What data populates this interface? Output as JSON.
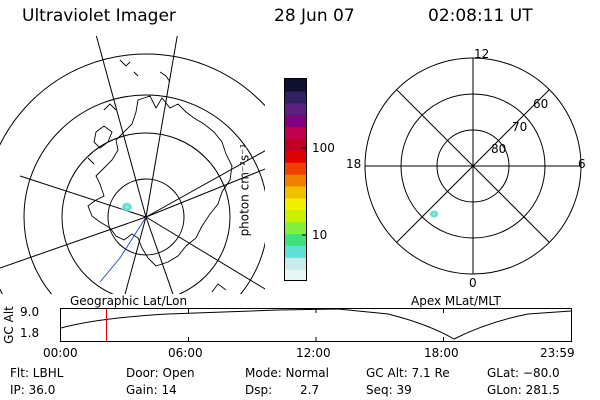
{
  "header": {
    "instrument": "Ultraviolet Imager",
    "date": "28 Jun 07",
    "time": "02:08:11 UT"
  },
  "maps": {
    "left_label": "Geographic Lat/Lon",
    "right_label": "Apex MLat/MLT"
  },
  "polar": {
    "mlt_labels": {
      "top": "12",
      "left": "18",
      "right": "6",
      "bottom": "0"
    },
    "mlat_labels": [
      "60",
      "70",
      "80"
    ]
  },
  "colorbar": {
    "unit_label": "photon cm⁻²s⁻¹",
    "tick_labels": [
      "100",
      "10"
    ],
    "colors": [
      "#e8f6f6",
      "#c8ecec",
      "#60e0d8",
      "#40e080",
      "#80f040",
      "#c8f000",
      "#f0f000",
      "#f0c000",
      "#f08000",
      "#f04000",
      "#e00000",
      "#c00020",
      "#c0004a",
      "#800080",
      "#5a2080",
      "#302060",
      "#101030"
    ]
  },
  "timeline": {
    "axis_label": "GC Alt",
    "ymax": "9.0",
    "ymin": "1.8",
    "ticks": [
      "00:00",
      "06:00",
      "12:00",
      "18:00",
      "23:59"
    ],
    "current_time_hours": 2.14
  },
  "info": {
    "flt": "Flt: LBHL",
    "ip": "IP: 36.0",
    "door": "Door: Open",
    "gain": "Gain: 14",
    "mode": "Mode: Normal",
    "dsp_label": "Dsp:",
    "dsp_value": "2.7",
    "gcalt": "GC Alt: 7.1 Re",
    "seq": "Seq: 39",
    "glat": "GLat: −80.0",
    "glon": "GLon: 281.5"
  }
}
